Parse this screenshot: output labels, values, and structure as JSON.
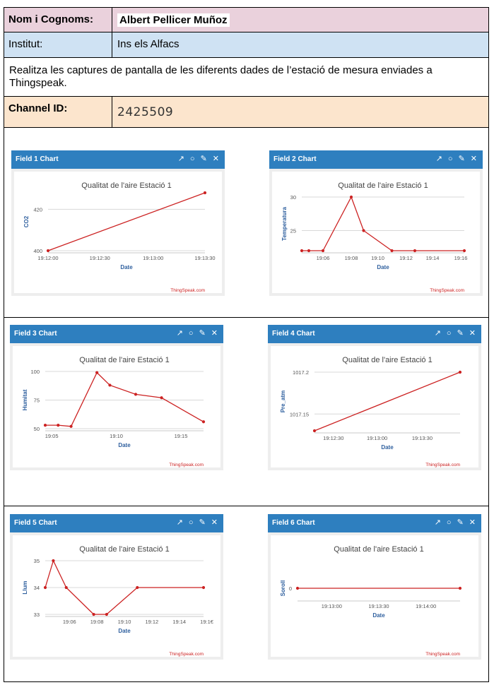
{
  "form": {
    "name_label": "Nom i Cognoms:",
    "name_value": "Albert Pellicer Muñoz",
    "institut_label": "Institut:",
    "institut_value": "Ins els Alfacs",
    "instructions": "Realitza les captures de pantalla de les diferents dades de l’estació de mesura enviades a Thingspeak.",
    "channel_label": "Channel ID:",
    "channel_value": "2425509"
  },
  "widget_icons": [
    "external-link-icon",
    "comment-icon",
    "pencil-icon",
    "close-icon"
  ],
  "colors": {
    "header": "#2e7fbf",
    "line": "#cc2222",
    "axis_label": "#2e5f9e"
  },
  "chart_data": [
    {
      "type": "line",
      "widget_title": "Field 1 Chart",
      "title": "Qualitat de l'aire Estació 1",
      "ylabel": "CO2",
      "xlabel": "Date",
      "credit": "ThingSpeak.com",
      "x": [
        0,
        1
      ],
      "y": [
        400,
        428
      ],
      "xlim": [
        0,
        1
      ],
      "ylim": [
        400,
        428
      ],
      "yticks": [
        400,
        420
      ],
      "ytick_labels": [
        "400",
        "420"
      ],
      "xticks": [
        0,
        0.33,
        0.67,
        1.0
      ],
      "xtick_labels": [
        "19:12:00",
        "19:12:30",
        "19:13:00",
        "19:13:30"
      ]
    },
    {
      "type": "line",
      "widget_title": "Field 2 Chart",
      "title": "Qualitat de l'aire Estació 1",
      "ylabel": "Temperatura",
      "xlabel": "Date",
      "credit": "ThingSpeak.com",
      "x": [
        0,
        0.04,
        0.12,
        0.28,
        0.35,
        0.51,
        0.64,
        0.92
      ],
      "y": [
        22,
        22,
        22,
        30,
        25,
        22,
        22,
        22
      ],
      "xlim": [
        0,
        0.92
      ],
      "ylim": [
        22,
        30
      ],
      "yticks": [
        25,
        30
      ],
      "ytick_labels": [
        "25",
        "30"
      ],
      "xticks": [
        0.12,
        0.28,
        0.43,
        0.59,
        0.74,
        0.9
      ],
      "xtick_labels": [
        "19:06",
        "19:08",
        "19:10",
        "19:12",
        "19:14",
        "19:16"
      ]
    },
    {
      "type": "line",
      "widget_title": "Field 3 Chart",
      "title": "Qualitat de l'aire Estació 1",
      "ylabel": "Humitat",
      "xlabel": "Date",
      "credit": "ThingSpeak.com",
      "x": [
        0,
        0.08,
        0.16,
        0.32,
        0.4,
        0.56,
        0.72,
        0.98
      ],
      "y": [
        53,
        53,
        52,
        99,
        88,
        80,
        77,
        56
      ],
      "xlim": [
        0,
        0.98
      ],
      "ylim": [
        50,
        100
      ],
      "yticks": [
        50,
        75,
        100
      ],
      "ytick_labels": [
        "50",
        "75",
        "100"
      ],
      "xticks": [
        0.04,
        0.44,
        0.84
      ],
      "xtick_labels": [
        "19:05",
        "19:10",
        "19:15"
      ]
    },
    {
      "type": "line",
      "widget_title": "Field 4 Chart",
      "title": "Qualitat de l'aire Estació 1",
      "ylabel": "Pre_atm",
      "xlabel": "Date",
      "credit": "ThingSpeak.com",
      "x": [
        0,
        1
      ],
      "y": [
        1017.13,
        1017.2
      ],
      "xlim": [
        0,
        1
      ],
      "ylim": [
        1017.13,
        1017.2
      ],
      "yticks": [
        1017.15,
        1017.2
      ],
      "ytick_labels": [
        "1017.15",
        "1017.2"
      ],
      "xticks": [
        0.13,
        0.43,
        0.74
      ],
      "xtick_labels": [
        "19:12:30",
        "19:13:00",
        "19:13:30"
      ]
    },
    {
      "type": "line",
      "widget_title": "Field 5 Chart",
      "title": "Qualitat de l'aire Estació 1",
      "ylabel": "Llum",
      "xlabel": "Date",
      "credit": "ThingSpeak.com",
      "x": [
        0,
        0.05,
        0.13,
        0.3,
        0.38,
        0.57,
        0.98
      ],
      "y": [
        34,
        35,
        34,
        33,
        33,
        34,
        34
      ],
      "xlim": [
        0,
        0.98
      ],
      "ylim": [
        33,
        35
      ],
      "yticks": [
        33,
        34,
        35
      ],
      "ytick_labels": [
        "33",
        "34",
        "35"
      ],
      "xticks": [
        0.15,
        0.32,
        0.49,
        0.66,
        0.83,
        1.0
      ],
      "xtick_labels": [
        "19:06",
        "19:08",
        "19:10",
        "19:12",
        "19:14",
        "19:1€"
      ]
    },
    {
      "type": "line",
      "widget_title": "Field 6 Chart",
      "title": "Qualitat de l'aire Estació 1",
      "ylabel": "Soroll",
      "xlabel": "Date",
      "credit": "ThingSpeak.com",
      "x": [
        0,
        1
      ],
      "y": [
        0,
        0
      ],
      "xlim": [
        0,
        1
      ],
      "ylim": [
        -1,
        1
      ],
      "yticks": [
        0
      ],
      "ytick_labels": [
        "0"
      ],
      "xticks": [
        0.21,
        0.5,
        0.79
      ],
      "xtick_labels": [
        "19:13:00",
        "19:13:30",
        "19:14:00"
      ]
    }
  ]
}
